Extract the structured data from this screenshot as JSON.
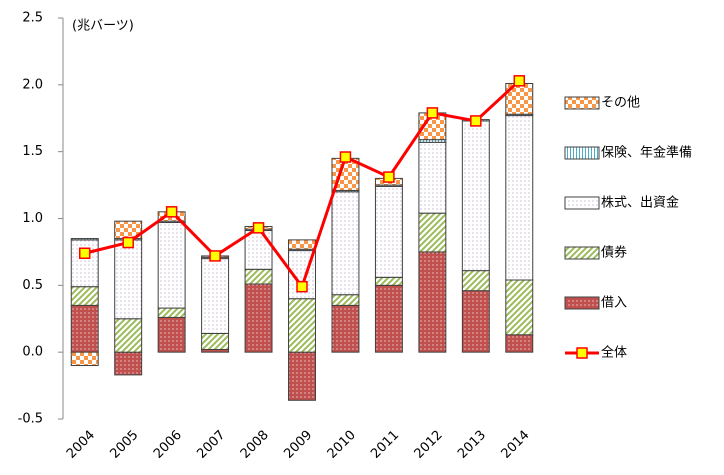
{
  "chart_data": {
    "type": "bar",
    "y_label": "(兆バーツ)",
    "categories": [
      "2004",
      "2005",
      "2006",
      "2007",
      "2008",
      "2009",
      "2010",
      "2011",
      "2012",
      "2013",
      "2014"
    ],
    "ylim": [
      -0.5,
      2.5
    ],
    "yticks": [
      -0.5,
      {
        "value": 0,
        "label": "0.0"
      },
      0.5,
      {
        "value": 1,
        "label": "1.0"
      },
      1.5,
      {
        "value": 2,
        "label": "2.0"
      },
      2.5
    ],
    "series": [
      {
        "name": "借入",
        "color": "#c0504d",
        "pattern": "dots-dark",
        "values": [
          0.35,
          -0.17,
          0.26,
          0.02,
          0.51,
          -0.36,
          0.35,
          0.5,
          0.75,
          0.46,
          0.13
        ]
      },
      {
        "name": "債券",
        "color": "#9bbb59",
        "pattern": "diagonal",
        "values": [
          0.14,
          0.25,
          0.07,
          0.12,
          0.11,
          0.4,
          0.08,
          0.06,
          0.29,
          0.15,
          0.41
        ]
      },
      {
        "name": "株式、出資金",
        "color": "#8064a2",
        "pattern": "dots-light",
        "values": [
          0.35,
          0.59,
          0.64,
          0.56,
          0.29,
          0.36,
          0.77,
          0.68,
          0.53,
          1.12,
          1.23
        ]
      },
      {
        "name": "保険、年金準備",
        "color": "#4bacc6",
        "pattern": "vertical",
        "values": [
          0.01,
          0.01,
          0.01,
          0.01,
          0.01,
          0.01,
          0.01,
          0.01,
          0.02,
          0.01,
          0.01
        ]
      },
      {
        "name": "その他",
        "color": "#f79646",
        "pattern": "checker",
        "values": [
          -0.1,
          0.13,
          0.07,
          0.01,
          0.02,
          0.07,
          0.24,
          0.05,
          0.2,
          0,
          0.23
        ]
      },
      {
        "name": "全体",
        "type": "line",
        "color": "#ff0000",
        "marker_color": "#ffff00",
        "values": [
          0.74,
          0.82,
          1.05,
          0.72,
          0.93,
          0.49,
          1.46,
          1.31,
          1.79,
          1.73,
          2.03
        ]
      }
    ]
  }
}
